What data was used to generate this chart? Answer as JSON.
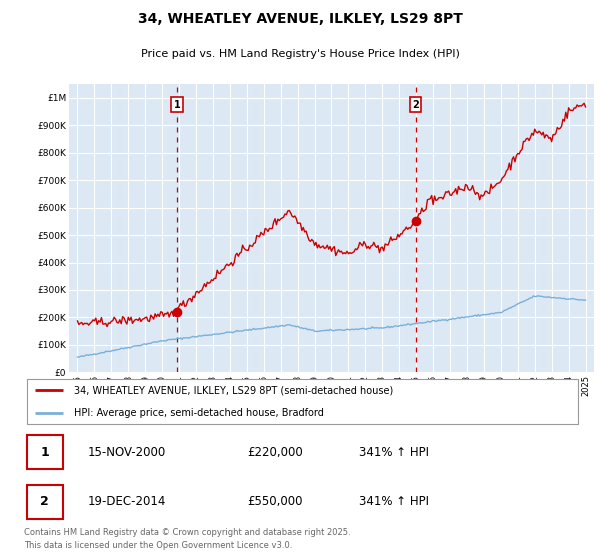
{
  "title": "34, WHEATLEY AVENUE, ILKLEY, LS29 8PT",
  "subtitle": "Price paid vs. HM Land Registry's House Price Index (HPI)",
  "title_fontsize": 10,
  "subtitle_fontsize": 8,
  "background_color": "#ffffff",
  "plot_bg_color": "#dce9f5",
  "grid_color": "#ffffff",
  "hpi_line_color": "#7ab0d8",
  "price_line_color": "#cc0000",
  "annotation_box_color": "#cc0000",
  "dashed_line_color": "#cc0000",
  "legend_label_red": "34, WHEATLEY AVENUE, ILKLEY, LS29 8PT (semi-detached house)",
  "legend_label_blue": "HPI: Average price, semi-detached house, Bradford",
  "footnote": "Contains HM Land Registry data © Crown copyright and database right 2025.\nThis data is licensed under the Open Government Licence v3.0.",
  "sale1_date": 2000.877,
  "sale1_price": 220000,
  "sale1_label": "1",
  "sale2_date": 2014.963,
  "sale2_price": 550000,
  "sale2_label": "2",
  "table_rows": [
    {
      "label": "1",
      "date": "15-NOV-2000",
      "price": "£220,000",
      "hpi": "341% ↑ HPI"
    },
    {
      "label": "2",
      "date": "19-DEC-2014",
      "price": "£550,000",
      "hpi": "341% ↑ HPI"
    }
  ],
  "ylim": [
    0,
    1050000
  ],
  "xlim_start": 1994.5,
  "xlim_end": 2025.5,
  "yticks": [
    0,
    100000,
    200000,
    300000,
    400000,
    500000,
    600000,
    700000,
    800000,
    900000,
    1000000
  ],
  "ytick_labels": [
    "£0",
    "£100K",
    "£200K",
    "£300K",
    "£400K",
    "£500K",
    "£600K",
    "£700K",
    "£800K",
    "£900K",
    "£1M"
  ],
  "xticks": [
    1995,
    1996,
    1997,
    1998,
    1999,
    2000,
    2001,
    2002,
    2003,
    2004,
    2005,
    2006,
    2007,
    2008,
    2009,
    2010,
    2011,
    2012,
    2013,
    2014,
    2015,
    2016,
    2017,
    2018,
    2019,
    2020,
    2021,
    2022,
    2023,
    2024,
    2025
  ]
}
